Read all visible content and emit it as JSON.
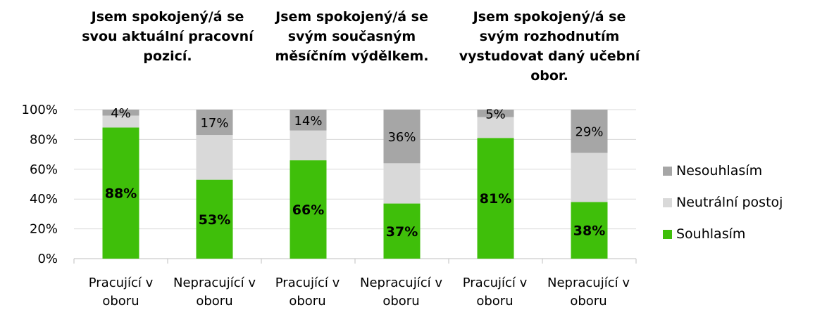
{
  "chart_data": {
    "type": "bar",
    "stacked": true,
    "groups": [
      "Jsem spokojený/á se svou aktuální pracovní pozicí.",
      "Jsem spokojený/á se svým současným měsíčním výdělkem.",
      "Jsem spokojený/á se svým rozhodnutím vystudovat daný učební obor."
    ],
    "categories": [
      "Pracující v oboru",
      "Nepracující v oboru",
      "Pracující v oboru",
      "Nepracující v oboru",
      "Pracující v oboru",
      "Nepracující v oboru"
    ],
    "series": [
      {
        "name": "Souhlasím",
        "color": "#3fbf0a",
        "values": [
          88,
          53,
          66,
          37,
          81,
          38
        ],
        "labels": [
          "88%",
          "53%",
          "66%",
          "37%",
          "81%",
          "38%"
        ]
      },
      {
        "name": "Neutrální postoj",
        "color": "#d9d9d9",
        "values": [
          8,
          30,
          20,
          27,
          14,
          33
        ],
        "labels": [
          "",
          "",
          "",
          "",
          "",
          ""
        ]
      },
      {
        "name": "Nesouhlasím",
        "color": "#a6a6a6",
        "values": [
          4,
          17,
          14,
          36,
          5,
          29
        ],
        "labels": [
          "4%",
          "17%",
          "14%",
          "36%",
          "5%",
          "29%"
        ]
      }
    ],
    "ylim": [
      0,
      100
    ],
    "yticks": [
      "0%",
      "20%",
      "40%",
      "60%",
      "80%",
      "100%"
    ],
    "grid": true,
    "legend_position": "right"
  }
}
